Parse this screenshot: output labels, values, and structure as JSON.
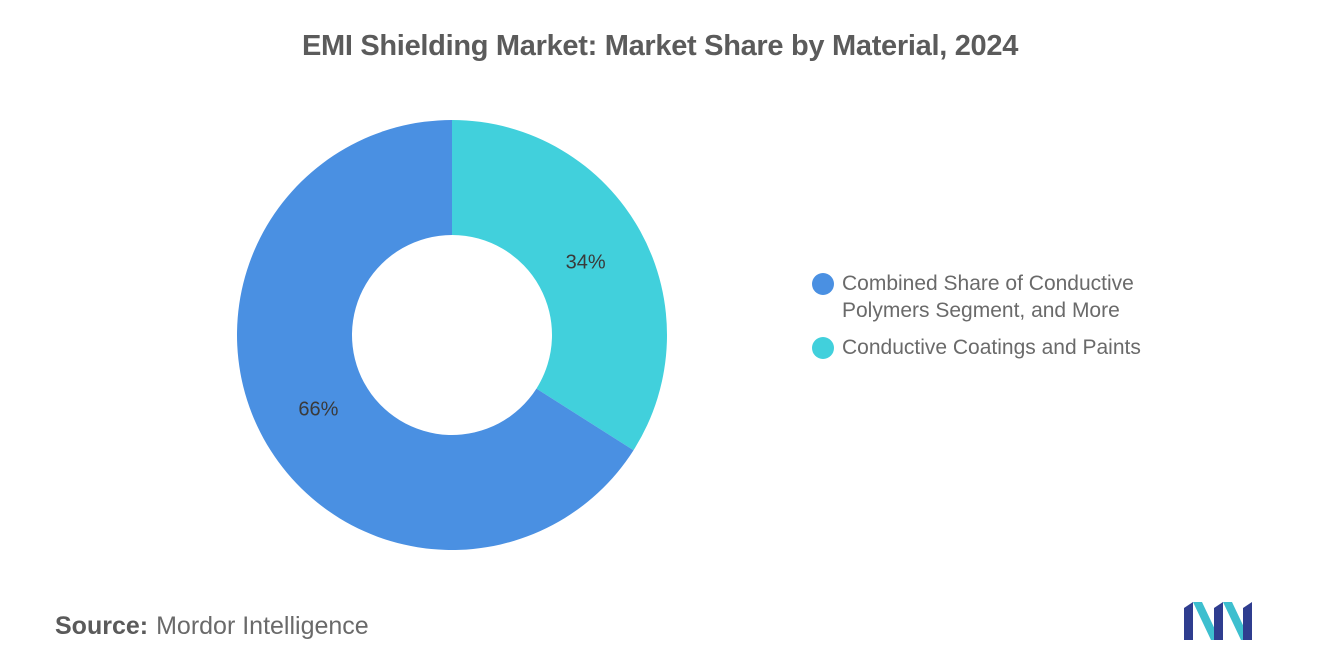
{
  "chart_data": {
    "type": "pie",
    "variant": "donut",
    "title": "EMI Shielding Market: Market Share by Material, 2024",
    "unit": "%",
    "slices": [
      {
        "label": "Conductive Coatings and Paints",
        "value": 34,
        "value_label": "34%",
        "color": "#41d0dc"
      },
      {
        "label": "Combined Share of Conductive Polymers Segment, and More",
        "value": 66,
        "value_label": "66%",
        "color": "#4a90e2"
      }
    ],
    "legend": {
      "placement": "right",
      "items": [
        {
          "label_line1": "Combined Share of Conductive",
          "label_line2": "Polymers Segment, and More",
          "color": "#4a90e2"
        },
        {
          "label_line1": "Conductive Coatings and Paints",
          "label_line2": "",
          "color": "#41d0dc"
        }
      ]
    }
  },
  "footer": {
    "source_key": "Source:",
    "source_value": "Mordor Intelligence"
  },
  "logo": {
    "icon": "mordor-intelligence-logo-icon",
    "colors": [
      "#2f3d8f",
      "#3dbfcf"
    ]
  }
}
